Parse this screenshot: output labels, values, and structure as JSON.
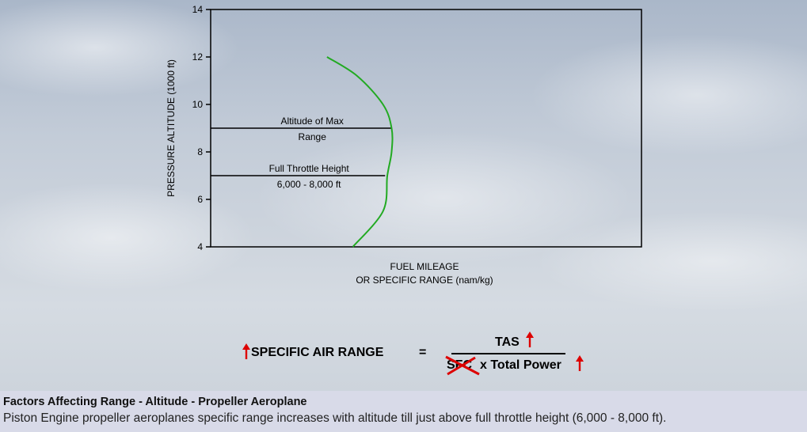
{
  "chart_data": {
    "type": "line",
    "title": "",
    "xlabel": "FUEL MILEAGE",
    "xlabel2": "OR SPECIFIC RANGE (nam/kg)",
    "ylabel": "PRESSURE ALTITUDE (1000 ft)",
    "ylim": [
      4,
      14
    ],
    "y_ticks": [
      "4",
      "6",
      "8",
      "10",
      "12",
      "14"
    ],
    "x_ticks": [],
    "grid": false,
    "series": [
      {
        "color": "#22aa22",
        "points": [
          {
            "x": 0.33,
            "y": 4.0
          },
          {
            "x": 0.4,
            "y": 5.5
          },
          {
            "x": 0.41,
            "y": 7.0
          },
          {
            "x": 0.42,
            "y": 8.0
          },
          {
            "x": 0.42,
            "y": 9.0
          },
          {
            "x": 0.4,
            "y": 10.0
          },
          {
            "x": 0.34,
            "y": 11.2
          },
          {
            "x": 0.27,
            "y": 12.0
          }
        ]
      }
    ],
    "reference_lines": [
      {
        "y": 9.0,
        "x_end": 0.42,
        "label_top": "Altitude of Max",
        "label_bottom": "Range"
      },
      {
        "y": 7.0,
        "x_end": 0.405,
        "label_top": "Full Throttle Height",
        "label_bottom": "6,000 - 8,000 ft"
      }
    ]
  },
  "formula": {
    "lhs": "SPECIFIC AIR RANGE",
    "equals": "=",
    "numerator": "TAS",
    "denominator_crossed": "SFC",
    "denominator_rest": "x Total Power",
    "arrow_color": "#dd0000",
    "cross_color": "#dd0000"
  },
  "caption": {
    "title": "Factors Affecting Range - Altitude - Propeller Aeroplane",
    "body": "Piston Engine propeller aeroplanes specific range increases with altitude till just above full throttle height (6,000 - 8,000 ft)."
  }
}
